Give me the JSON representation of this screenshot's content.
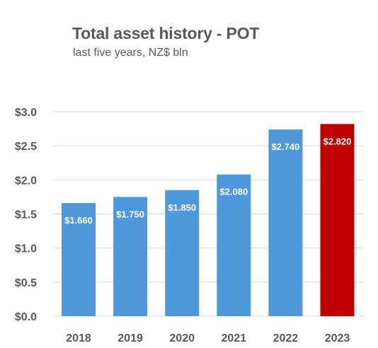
{
  "chart_data": {
    "type": "bar",
    "title": "Total asset history - POT",
    "subtitle": "last five years, NZ$ bln",
    "categories": [
      "2018",
      "2019",
      "2020",
      "2021",
      "2022",
      "2023"
    ],
    "values": [
      1.66,
      1.75,
      1.85,
      2.08,
      2.74,
      2.82
    ],
    "data_labels": [
      "$1.660",
      "$1.750",
      "$1.850",
      "$2.080",
      "$2.740",
      "$2.820"
    ],
    "ylim": [
      0,
      3.0
    ],
    "yticks": [
      "$0.0",
      "$0.5",
      "$1.0",
      "$1.5",
      "$2.0",
      "$2.5",
      "$3.0"
    ],
    "ytick_values": [
      0,
      0.5,
      1.0,
      1.5,
      2.0,
      2.5,
      3.0
    ],
    "grid": true,
    "legend": "none",
    "colors": {
      "bar": "#4f98db",
      "highlight": "#c00000",
      "highlight_category": "2023",
      "grid": "#d9d9d9",
      "text": "#595959"
    }
  }
}
